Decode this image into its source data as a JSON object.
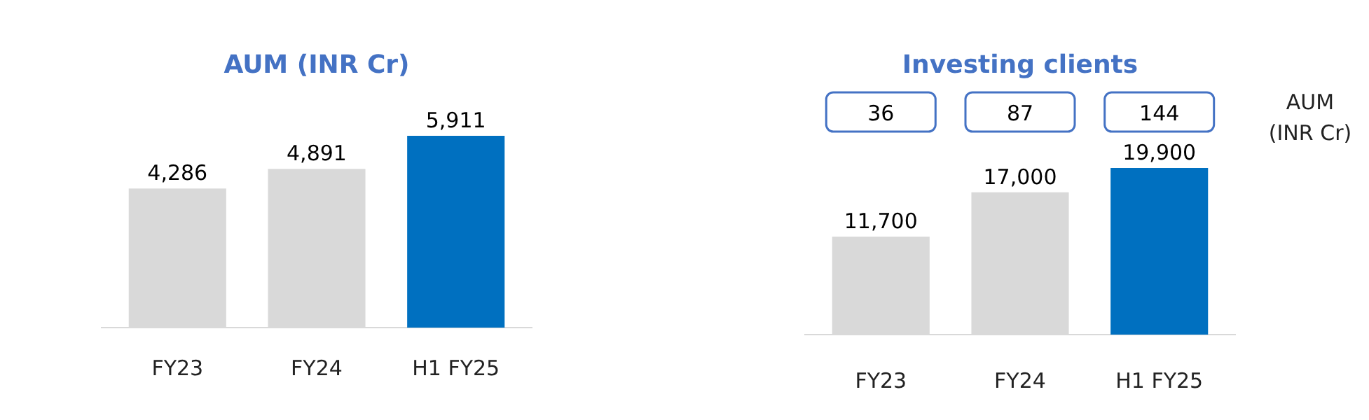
{
  "chart_data": [
    {
      "type": "bar",
      "title": "AUM (INR Cr)",
      "categories": [
        "FY23",
        "FY24",
        "H1 FY25"
      ],
      "values": [
        4286,
        4891,
        5911
      ],
      "colors": [
        "#d9d9d9",
        "#d9d9d9",
        "#0070c0"
      ],
      "value_labels": [
        "4,286",
        "4,891",
        "5,911"
      ]
    },
    {
      "type": "bar",
      "title": "Investing clients",
      "categories": [
        "FY23",
        "FY24",
        "H1 FY25"
      ],
      "values": [
        11700,
        17000,
        19900
      ],
      "colors": [
        "#d9d9d9",
        "#d9d9d9",
        "#0070c0"
      ],
      "value_labels": [
        "11,700",
        "17,000",
        "19,900"
      ],
      "annotations": [
        "36",
        "87",
        "144",
        "AUM\n(INR Cr)"
      ]
    }
  ]
}
